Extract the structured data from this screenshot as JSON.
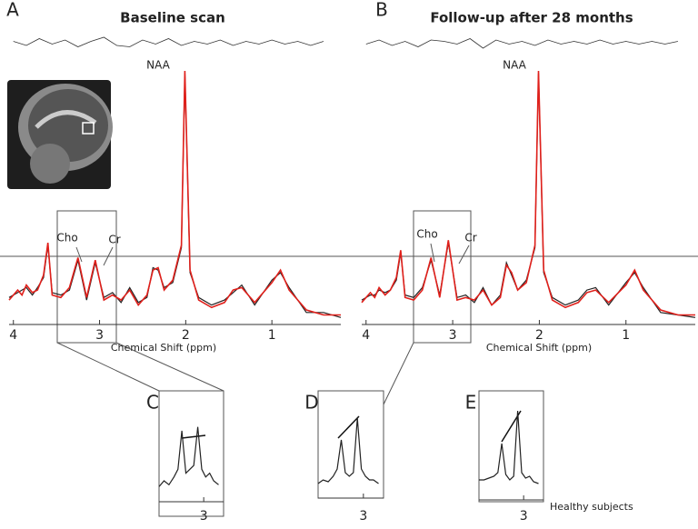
{
  "chart_data": [
    {
      "type": "line",
      "panel_label": "A",
      "title": "Baseline scan",
      "xlabel": "Chemical Shift (ppm)",
      "xlim": [
        4.05,
        0.2
      ],
      "ylim": [
        0,
        100
      ],
      "xticks": [
        4,
        3,
        2,
        1
      ],
      "peak_labels": [
        "NAA",
        "Cho",
        "Cr"
      ],
      "x": [
        4.05,
        3.95,
        3.9,
        3.85,
        3.78,
        3.72,
        3.65,
        3.6,
        3.55,
        3.45,
        3.35,
        3.25,
        3.15,
        3.05,
        2.95,
        2.85,
        2.75,
        2.65,
        2.55,
        2.45,
        2.38,
        2.32,
        2.25,
        2.15,
        2.05,
        2.01,
        1.95,
        1.85,
        1.7,
        1.55,
        1.45,
        1.35,
        1.2,
        1.0,
        0.9,
        0.8,
        0.6,
        0.4,
        0.2
      ],
      "series": [
        {
          "color": "#222222",
          "values": [
            9,
            11,
            12,
            13,
            10,
            13,
            17,
            30,
            11,
            10,
            12,
            24,
            8,
            23,
            9,
            11,
            7,
            13,
            7,
            9,
            21,
            20,
            13,
            15,
            29,
            99,
            19,
            9,
            6,
            8,
            11,
            14,
            6,
            16,
            19,
            13,
            3,
            3,
            1
          ]
        },
        {
          "color": "#e0201b",
          "values": [
            8,
            12,
            10,
            14,
            11,
            12,
            18,
            31,
            10,
            9,
            13,
            25,
            9,
            24,
            8,
            10,
            8,
            12,
            6,
            10,
            20,
            21,
            12,
            16,
            30,
            100,
            20,
            8,
            5,
            7,
            12,
            13,
            7,
            15,
            20,
            12,
            4,
            2,
            2
          ]
        }
      ],
      "residual_x": [
        4.0,
        3.85,
        3.7,
        3.55,
        3.4,
        3.25,
        3.1,
        2.95,
        2.8,
        2.65,
        2.5,
        2.35,
        2.2,
        2.05,
        1.9,
        1.75,
        1.6,
        1.45,
        1.3,
        1.15,
        1.0,
        0.85,
        0.7,
        0.55,
        0.4
      ],
      "residual_values": [
        1,
        -2,
        3,
        -1,
        2,
        -3,
        1,
        4,
        -2,
        -3,
        2,
        -1,
        3,
        -2,
        1,
        -1,
        2,
        -2,
        1,
        -1,
        2,
        -1,
        1,
        -2,
        1
      ]
    },
    {
      "type": "line",
      "panel_label": "B",
      "title": "Follow-up after 28 months",
      "xlabel": "Chemical Shift (ppm)",
      "xlim": [
        4.05,
        0.2
      ],
      "ylim": [
        0,
        100
      ],
      "xticks": [
        4,
        3,
        2,
        1
      ],
      "peak_labels": [
        "NAA",
        "Cho",
        "Cr"
      ],
      "x": [
        4.05,
        3.95,
        3.9,
        3.85,
        3.78,
        3.72,
        3.65,
        3.6,
        3.55,
        3.45,
        3.35,
        3.25,
        3.15,
        3.05,
        2.95,
        2.85,
        2.75,
        2.65,
        2.55,
        2.45,
        2.38,
        2.32,
        2.25,
        2.15,
        2.05,
        2.01,
        1.95,
        1.85,
        1.7,
        1.55,
        1.45,
        1.35,
        1.2,
        1.0,
        0.9,
        0.8,
        0.6,
        0.4,
        0.2
      ],
      "series": [
        {
          "color": "#222222",
          "values": [
            8,
            10,
            10,
            12,
            11,
            12,
            16,
            27,
            10,
            9,
            13,
            24,
            10,
            31,
            9,
            10,
            7,
            13,
            6,
            10,
            23,
            18,
            12,
            16,
            29,
            99,
            19,
            9,
            6,
            8,
            12,
            13,
            6,
            15,
            19,
            13,
            3,
            2,
            1
          ]
        },
        {
          "color": "#e0201b",
          "values": [
            7,
            11,
            9,
            13,
            10,
            12,
            17,
            28,
            9,
            8,
            12,
            25,
            9,
            32,
            8,
            9,
            8,
            12,
            6,
            9,
            22,
            19,
            12,
            15,
            30,
            100,
            20,
            8,
            5,
            7,
            11,
            12,
            7,
            14,
            20,
            12,
            4,
            2,
            2
          ]
        }
      ],
      "residual_x": [
        4.0,
        3.85,
        3.7,
        3.55,
        3.4,
        3.25,
        3.1,
        2.95,
        2.8,
        2.65,
        2.5,
        2.35,
        2.2,
        2.05,
        1.9,
        1.75,
        1.6,
        1.45,
        1.3,
        1.15,
        1.0,
        0.85,
        0.7,
        0.55,
        0.4
      ],
      "residual_values": [
        -1,
        2,
        -2,
        1,
        -3,
        2,
        1,
        -1,
        3,
        -4,
        2,
        -1,
        1,
        -2,
        2,
        -1,
        1,
        -1,
        2,
        -1,
        1,
        -1,
        1,
        -1,
        1
      ]
    },
    {
      "type": "line",
      "panel_label": "C",
      "xlim": [
        3.45,
        2.8
      ],
      "ylim": [
        0,
        50
      ],
      "xticks": [
        3
      ],
      "x": [
        3.45,
        3.4,
        3.35,
        3.3,
        3.26,
        3.22,
        3.18,
        3.14,
        3.1,
        3.06,
        3.02,
        2.98,
        2.94,
        2.9,
        2.85
      ],
      "series": [
        {
          "color": "#222222",
          "values": [
            5,
            8,
            6,
            10,
            14,
            34,
            12,
            14,
            16,
            36,
            14,
            10,
            12,
            8,
            6
          ]
        }
      ]
    },
    {
      "type": "line",
      "panel_label": "D",
      "xlim": [
        3.45,
        2.8
      ],
      "ylim": [
        0,
        50
      ],
      "xticks": [
        3
      ],
      "x": [
        3.45,
        3.4,
        3.35,
        3.3,
        3.26,
        3.22,
        3.18,
        3.14,
        3.1,
        3.06,
        3.02,
        2.98,
        2.94,
        2.9,
        2.85
      ],
      "series": [
        {
          "color": "#222222",
          "values": [
            4,
            6,
            5,
            8,
            12,
            28,
            10,
            8,
            10,
            40,
            12,
            8,
            6,
            6,
            4
          ]
        }
      ]
    },
    {
      "type": "line",
      "panel_label": "E",
      "note": "Healthy subjects",
      "xlim": [
        3.45,
        2.8
      ],
      "ylim": [
        0,
        50
      ],
      "xticks": [
        3
      ],
      "x": [
        3.45,
        3.4,
        3.35,
        3.3,
        3.26,
        3.22,
        3.18,
        3.14,
        3.1,
        3.06,
        3.02,
        2.98,
        2.94,
        2.9,
        2.85
      ],
      "series": [
        {
          "color": "#222222",
          "values": [
            6,
            6,
            7,
            8,
            10,
            26,
            9,
            6,
            8,
            44,
            10,
            7,
            8,
            5,
            4
          ]
        }
      ]
    }
  ]
}
